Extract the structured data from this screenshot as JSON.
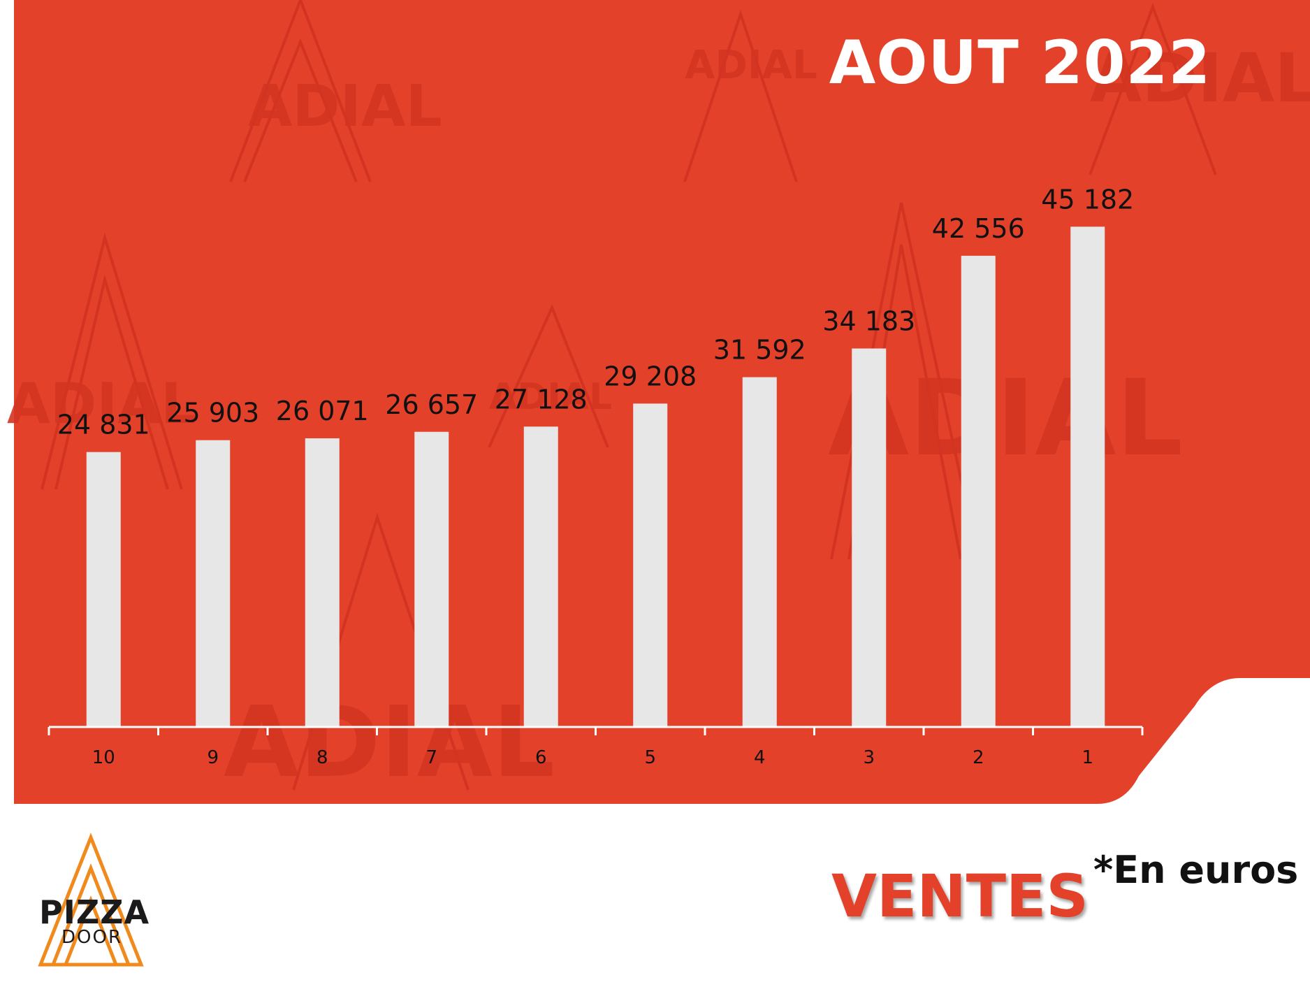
{
  "page": {
    "title": "AOUT 2022",
    "section_label": "VENTES",
    "unit_note": "*En euros",
    "watermark_text": "ADIAL",
    "logo": {
      "line1": "PIZZA",
      "line2": "DOOR"
    }
  },
  "colors": {
    "panel": "#e4412a",
    "watermark": "#cf3220",
    "bar": "#e7e7e7",
    "axis": "#ffffff",
    "label": "#111111",
    "logo_orange": "#f08a1c"
  },
  "chart_data": {
    "type": "bar",
    "title": "AOUT 2022",
    "xlabel": "",
    "ylabel": "",
    "categories": [
      "10",
      "9",
      "8",
      "7",
      "6",
      "5",
      "4",
      "3",
      "2",
      "1"
    ],
    "values": [
      24831,
      25903,
      26071,
      26657,
      27128,
      29208,
      31592,
      34183,
      42556,
      45182
    ],
    "data_labels": [
      "24 831",
      "25 903",
      "26 071",
      "26 657",
      "27 128",
      "29 208",
      "31 592",
      "34 183",
      "42 556",
      "45 182"
    ],
    "ylim": [
      0,
      50000
    ],
    "grid": false,
    "legend": "none"
  }
}
